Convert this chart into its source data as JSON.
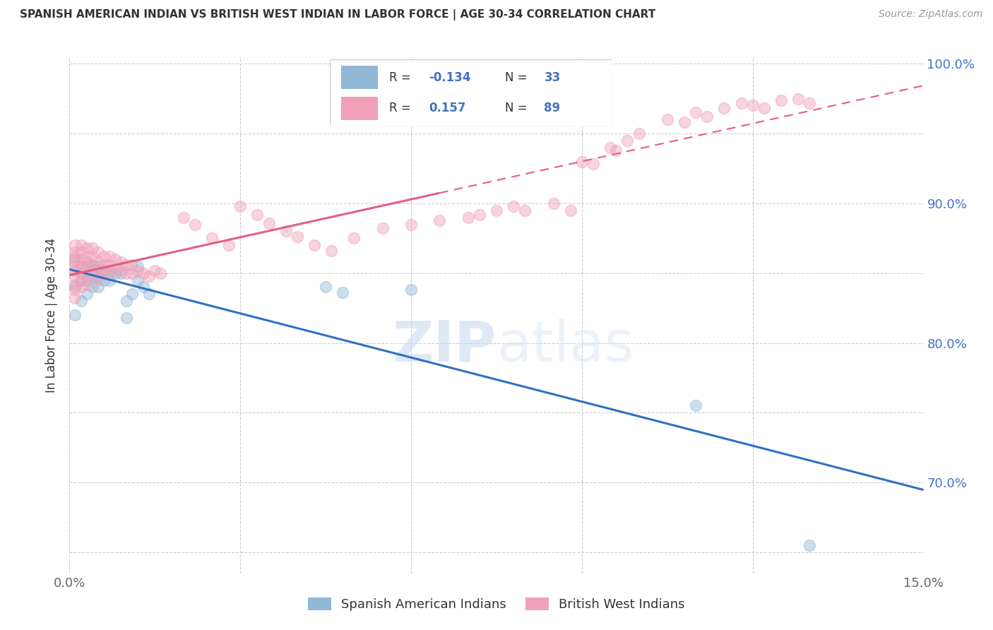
{
  "title": "SPANISH AMERICAN INDIAN VS BRITISH WEST INDIAN IN LABOR FORCE | AGE 30-34 CORRELATION CHART",
  "source": "Source: ZipAtlas.com",
  "ylabel": "In Labor Force | Age 30-34",
  "xlim": [
    0.0,
    0.15
  ],
  "ylim": [
    0.635,
    1.005
  ],
  "blue_color": "#92b8d8",
  "pink_color": "#f0a0b8",
  "blue_line_color": "#3070c0",
  "pink_line_color": "#e06080",
  "watermark": "ZIPatlas",
  "blue_r": "-0.134",
  "blue_n": "33",
  "pink_r": "0.157",
  "pink_n": "89",
  "blue_x": [
    0.001,
    0.001,
    0.001,
    0.002,
    0.002,
    0.002,
    0.003,
    0.003,
    0.003,
    0.004,
    0.004,
    0.004,
    0.005,
    0.005,
    0.005,
    0.006,
    0.006,
    0.007,
    0.007,
    0.008,
    0.009,
    0.01,
    0.01,
    0.011,
    0.012,
    0.012,
    0.013,
    0.014,
    0.045,
    0.048,
    0.06,
    0.11,
    0.13
  ],
  "blue_y": [
    0.86,
    0.84,
    0.82,
    0.855,
    0.845,
    0.83,
    0.855,
    0.845,
    0.835,
    0.855,
    0.848,
    0.84,
    0.855,
    0.848,
    0.84,
    0.852,
    0.845,
    0.852,
    0.845,
    0.85,
    0.85,
    0.83,
    0.818,
    0.835,
    0.855,
    0.845,
    0.84,
    0.835,
    0.84,
    0.836,
    0.838,
    0.755,
    0.655
  ],
  "pink_x": [
    0.001,
    0.001,
    0.001,
    0.001,
    0.001,
    0.001,
    0.001,
    0.001,
    0.001,
    0.001,
    0.002,
    0.002,
    0.002,
    0.002,
    0.002,
    0.002,
    0.002,
    0.003,
    0.003,
    0.003,
    0.003,
    0.003,
    0.003,
    0.004,
    0.004,
    0.004,
    0.004,
    0.005,
    0.005,
    0.005,
    0.005,
    0.006,
    0.006,
    0.006,
    0.007,
    0.007,
    0.007,
    0.008,
    0.008,
    0.009,
    0.009,
    0.01,
    0.01,
    0.011,
    0.011,
    0.012,
    0.013,
    0.014,
    0.015,
    0.016,
    0.02,
    0.022,
    0.025,
    0.028,
    0.03,
    0.033,
    0.035,
    0.038,
    0.04,
    0.043,
    0.046,
    0.05,
    0.055,
    0.06,
    0.065,
    0.07,
    0.072,
    0.075,
    0.078,
    0.08,
    0.085,
    0.088,
    0.09,
    0.092,
    0.095,
    0.096,
    0.098,
    0.1,
    0.105,
    0.108,
    0.11,
    0.112,
    0.115,
    0.118,
    0.12,
    0.122,
    0.125,
    0.128,
    0.13
  ],
  "pink_y": [
    0.87,
    0.865,
    0.862,
    0.858,
    0.855,
    0.852,
    0.848,
    0.842,
    0.838,
    0.832,
    0.87,
    0.865,
    0.86,
    0.855,
    0.85,
    0.845,
    0.84,
    0.868,
    0.862,
    0.858,
    0.852,
    0.848,
    0.842,
    0.868,
    0.862,
    0.856,
    0.85,
    0.865,
    0.858,
    0.852,
    0.846,
    0.862,
    0.856,
    0.85,
    0.862,
    0.856,
    0.85,
    0.86,
    0.854,
    0.858,
    0.852,
    0.856,
    0.85,
    0.856,
    0.85,
    0.852,
    0.85,
    0.848,
    0.852,
    0.85,
    0.89,
    0.885,
    0.875,
    0.87,
    0.898,
    0.892,
    0.886,
    0.88,
    0.876,
    0.87,
    0.866,
    0.875,
    0.882,
    0.885,
    0.888,
    0.89,
    0.892,
    0.895,
    0.898,
    0.895,
    0.9,
    0.895,
    0.93,
    0.928,
    0.94,
    0.938,
    0.945,
    0.95,
    0.96,
    0.958,
    0.965,
    0.962,
    0.968,
    0.972,
    0.97,
    0.968,
    0.974,
    0.975,
    0.972
  ]
}
